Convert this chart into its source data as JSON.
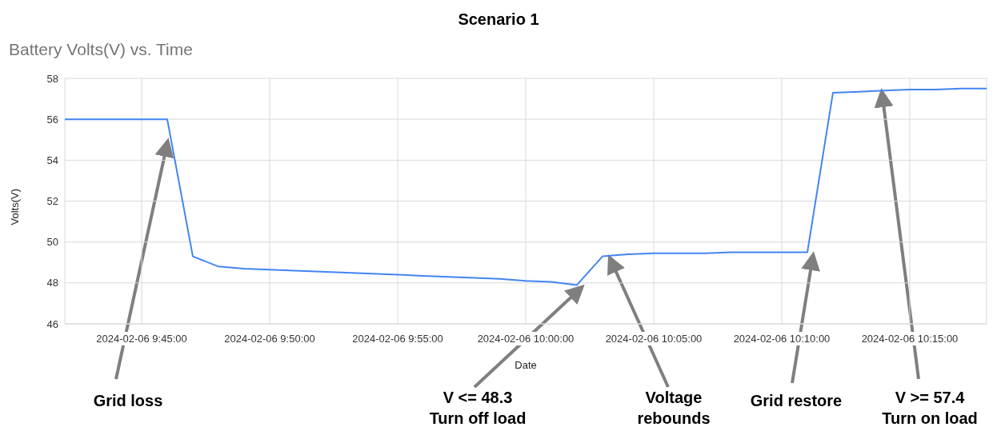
{
  "chart_data": {
    "type": "line",
    "title": "Scenario 1",
    "subtitle": "Battery Volts(V) vs. Time",
    "xlabel": "Date",
    "ylabel": "Volts(V)",
    "x": [
      "2024-02-06T09:42",
      "2024-02-06T09:43",
      "2024-02-06T09:44",
      "2024-02-06T09:45",
      "2024-02-06T09:46",
      "2024-02-06T09:47",
      "2024-02-06T09:48",
      "2024-02-06T09:49",
      "2024-02-06T09:50",
      "2024-02-06T09:51",
      "2024-02-06T09:52",
      "2024-02-06T09:53",
      "2024-02-06T09:54",
      "2024-02-06T09:55",
      "2024-02-06T09:56",
      "2024-02-06T09:57",
      "2024-02-06T09:58",
      "2024-02-06T09:59",
      "2024-02-06T10:00",
      "2024-02-06T10:01",
      "2024-02-06T10:02",
      "2024-02-06T10:03",
      "2024-02-06T10:04",
      "2024-02-06T10:05",
      "2024-02-06T10:06",
      "2024-02-06T10:07",
      "2024-02-06T10:08",
      "2024-02-06T10:09",
      "2024-02-06T10:10",
      "2024-02-06T10:11",
      "2024-02-06T10:12",
      "2024-02-06T10:13",
      "2024-02-06T10:14",
      "2024-02-06T10:15",
      "2024-02-06T10:16",
      "2024-02-06T10:17",
      "2024-02-06T10:18"
    ],
    "series": [
      {
        "color": "#4285f4",
        "values": [
          56.0,
          56.0,
          56.0,
          56.0,
          56.0,
          49.3,
          48.8,
          48.7,
          48.65,
          48.6,
          48.55,
          48.5,
          48.45,
          48.4,
          48.35,
          48.3,
          48.25,
          48.2,
          48.1,
          48.05,
          47.9,
          49.3,
          49.4,
          49.45,
          49.45,
          49.45,
          49.5,
          49.5,
          49.5,
          49.5,
          57.3,
          57.35,
          57.4,
          57.45,
          57.45,
          57.5,
          57.5
        ]
      }
    ],
    "xlim": [
      "2024-02-06T09:42",
      "2024-02-06T10:18"
    ],
    "xticks": [
      {
        "value": "2024-02-06T09:45",
        "label": "2024-02-06 9:45:00"
      },
      {
        "value": "2024-02-06T09:50",
        "label": "2024-02-06 9:50:00"
      },
      {
        "value": "2024-02-06T09:55",
        "label": "2024-02-06 9:55:00"
      },
      {
        "value": "2024-02-06T10:00",
        "label": "2024-02-06 10:00:00"
      },
      {
        "value": "2024-02-06T10:05",
        "label": "2024-02-06 10:05:00"
      },
      {
        "value": "2024-02-06T10:10",
        "label": "2024-02-06 10:10:00"
      },
      {
        "value": "2024-02-06T10:15",
        "label": "2024-02-06 10:15:00"
      }
    ],
    "ylim": [
      46,
      58
    ],
    "yticks": [
      46,
      48,
      50,
      52,
      54,
      56,
      58
    ],
    "grid": true,
    "legend": false,
    "marker": "none",
    "line_style": "solid",
    "annotations": [
      "Grid loss",
      "V <= 48.3\nTurn off load",
      "Voltage\nrebounds",
      "Grid restore",
      "V >= 57.4\nTurn on load"
    ]
  }
}
